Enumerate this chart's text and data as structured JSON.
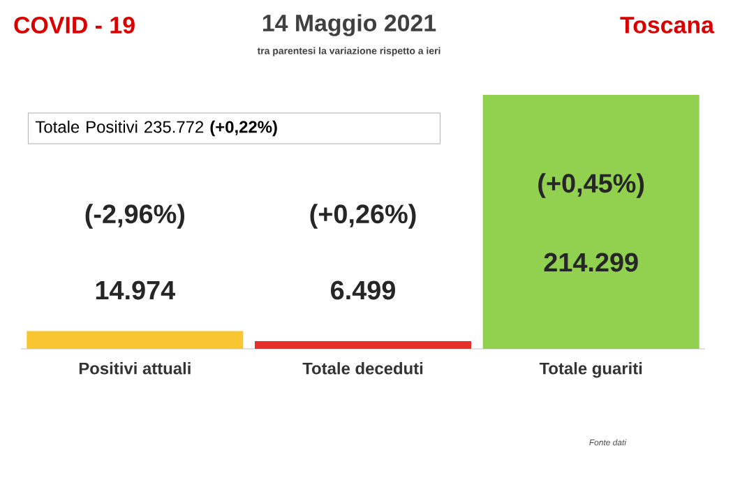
{
  "chart_data": {
    "type": "bar",
    "title": "14 Maggio 2021",
    "subtitle": "tra parentesi la variazione rispetto a ieri",
    "categories": [
      "Positivi attuali",
      "Totale deceduti",
      "Totale guariti"
    ],
    "values": [
      14974,
      6499,
      214299
    ],
    "colors": [
      "#f8c631",
      "#e8302a",
      "#92d050"
    ],
    "value_labels": [
      "14.974",
      "6.499",
      "214.299"
    ],
    "annotations": [
      "COVID - 19",
      "Toscana",
      "Totale Positivi   235.772 **(+0,22%)**",
      "Fonte dati",
      "(-2,96%)",
      "(+0,26%)",
      "(+0,45%)"
    ]
  }
}
